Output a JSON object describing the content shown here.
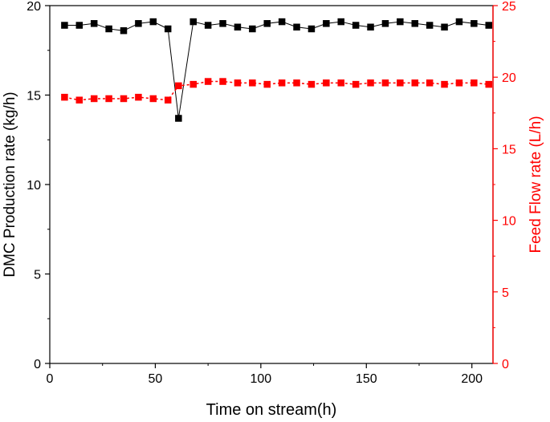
{
  "chart_data": {
    "type": "line",
    "title": "",
    "xlabel": "Time on stream(h)",
    "ylabel_left": "DMC Production rate (kg/h)",
    "ylabel_right": "Feed Flow rate (L/h)",
    "xlim": [
      0,
      210
    ],
    "ylim_left": [
      0,
      20
    ],
    "ylim_right": [
      0,
      25
    ],
    "xticks": [
      0,
      50,
      100,
      150,
      200
    ],
    "yticks_left": [
      0,
      5,
      10,
      15,
      20
    ],
    "yticks_right": [
      0,
      5,
      10,
      15,
      20,
      25
    ],
    "grid": false,
    "series": [
      {
        "axis": "left",
        "color": "#000000",
        "marker": "square",
        "line_style": "solid",
        "x": [
          7,
          14,
          21,
          28,
          35,
          42,
          49,
          56,
          61,
          68,
          75,
          82,
          89,
          96,
          103,
          110,
          117,
          124,
          131,
          138,
          145,
          152,
          159,
          166,
          173,
          180,
          187,
          194,
          201,
          208
        ],
        "y": [
          18.9,
          18.9,
          19.0,
          18.7,
          18.6,
          19.0,
          19.1,
          18.7,
          13.7,
          19.1,
          18.9,
          19.0,
          18.8,
          18.7,
          19.0,
          19.1,
          18.8,
          18.7,
          19.0,
          19.1,
          18.9,
          18.8,
          19.0,
          19.1,
          19.0,
          18.9,
          18.8,
          19.1,
          19.0,
          18.9
        ]
      },
      {
        "axis": "right",
        "color": "#ff0000",
        "marker": "square",
        "line_style": "dashed",
        "x": [
          7,
          14,
          21,
          28,
          35,
          42,
          49,
          56,
          61,
          68,
          75,
          82,
          89,
          96,
          103,
          110,
          117,
          124,
          131,
          138,
          145,
          152,
          159,
          166,
          173,
          180,
          187,
          194,
          201,
          208
        ],
        "y": [
          18.6,
          18.4,
          18.5,
          18.5,
          18.5,
          18.6,
          18.5,
          18.4,
          19.4,
          19.5,
          19.7,
          19.7,
          19.6,
          19.6,
          19.5,
          19.6,
          19.6,
          19.5,
          19.6,
          19.6,
          19.5,
          19.6,
          19.6,
          19.6,
          19.6,
          19.6,
          19.5,
          19.6,
          19.6,
          19.5
        ]
      }
    ]
  }
}
